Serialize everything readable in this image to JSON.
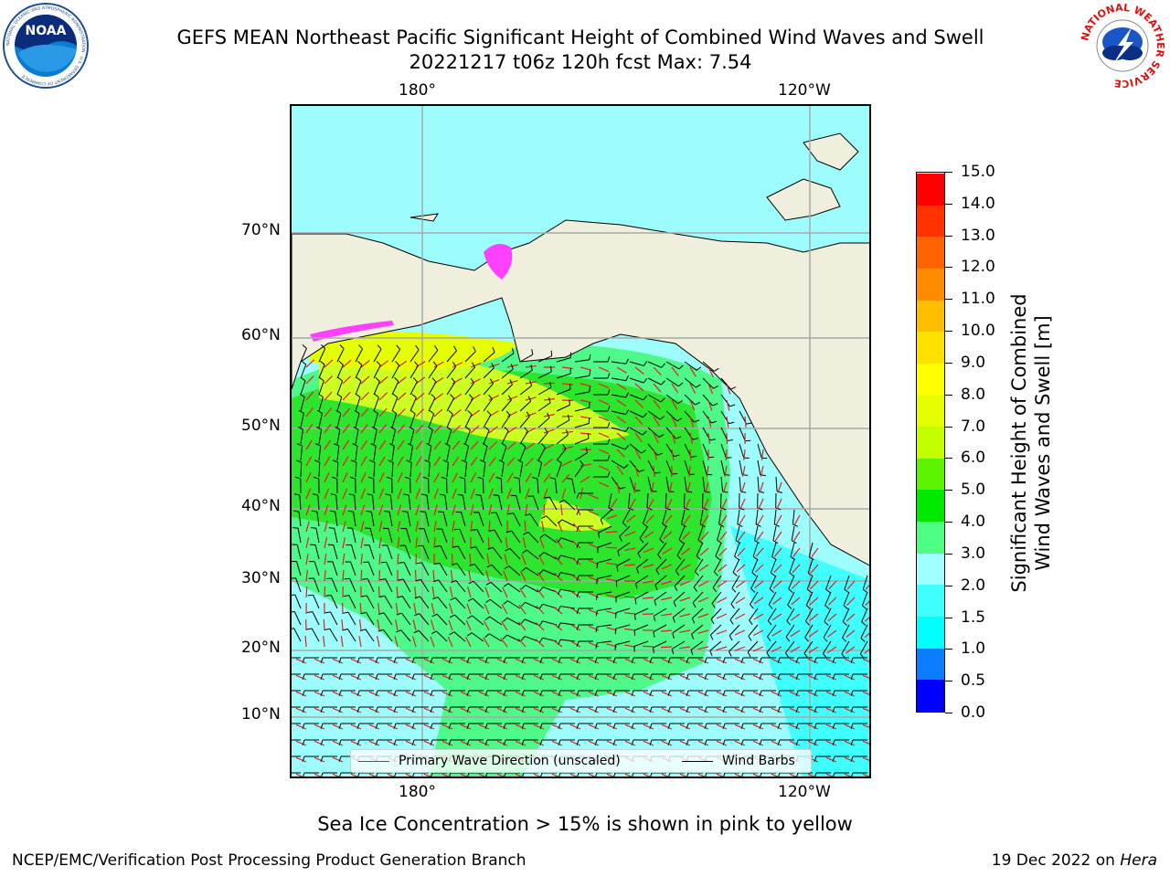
{
  "title": {
    "line1": "GEFS MEAN Northeast Pacific Significant Height of Combined Wind Waves and Swell",
    "line2": "20221217 t06z 120h fcst   Max: 7.54"
  },
  "axes": {
    "lon_top": [
      "180°",
      "120°W"
    ],
    "lon_bottom": [
      "180°",
      "120°W"
    ],
    "lat": [
      "70°N",
      "60°N",
      "50°N",
      "40°N",
      "30°N",
      "20°N",
      "10°N"
    ]
  },
  "legend": {
    "wave_direction": "Primary Wave Direction (unscaled)",
    "wind_barbs": "Wind Barbs",
    "wave_color": "#e02020",
    "barb_color": "#000000"
  },
  "colorbar": {
    "title_line1": "Significant Height of Combined",
    "title_line2": "Wind Waves and Swell [m]",
    "ticks": [
      "0.0",
      "0.5",
      "1.0",
      "1.5",
      "2.0",
      "3.0",
      "4.0",
      "5.0",
      "6.0",
      "7.0",
      "8.0",
      "9.0",
      "10.0",
      "11.0",
      "12.0",
      "13.0",
      "14.0",
      "15.0"
    ],
    "colors": [
      "#0000ff",
      "#0a7cff",
      "#00ffff",
      "#40ffff",
      "#a0ffff",
      "#4dff82",
      "#00ea00",
      "#5cf400",
      "#c4ff00",
      "#e6ff00",
      "#ffff00",
      "#ffe100",
      "#ffbf00",
      "#ff8c00",
      "#ff6400",
      "#ff3200",
      "#ff0000"
    ]
  },
  "caption": "Sea Ice Concentration > 15% is shown in pink to yellow",
  "footer": {
    "left": "NCEP/EMC/Verification Post Processing Product Generation Branch",
    "date": "19 Dec 2022 on",
    "host": "Hera"
  },
  "logos": {
    "noaa": "NOAA",
    "noaa_ring": "NATIONAL OCEANIC AND ATMOSPHERIC ADMINISTRATION · U.S. DEPARTMENT OF COMMERCE",
    "nws_ring": "NATIONAL WEATHER SERVICE"
  },
  "map_colors": {
    "land": "#f0eedc",
    "ocean_low": "#9dfdfd",
    "ocean_mid": "#4ef98a",
    "ocean_high": "#2de52d",
    "ocean_peak": "#ccff22",
    "ice": "#ff40ff"
  }
}
